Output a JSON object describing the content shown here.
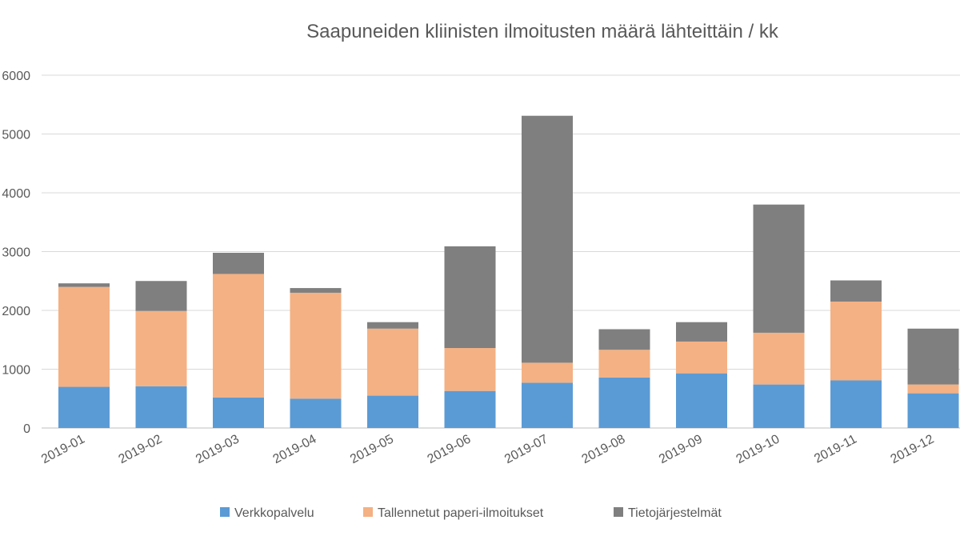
{
  "chart_data": {
    "type": "bar",
    "stacked": true,
    "title": "Saapuneiden kliinisten ilmoitusten määrä lähteittäin / kk",
    "xlabel": "",
    "ylabel": "",
    "categories": [
      "2019-01",
      "2019-02",
      "2019-03",
      "2019-04",
      "2019-05",
      "2019-06",
      "2019-07",
      "2019-08",
      "2019-09",
      "2019-10",
      "2019-11",
      "2019-12"
    ],
    "y_ticks": [
      "0",
      "1000",
      "2000",
      "3000",
      "4000",
      "5000",
      "6000"
    ],
    "y_tick_values": [
      0,
      1000,
      2000,
      3000,
      4000,
      5000,
      6000
    ],
    "ylim": [
      0,
      6000
    ],
    "grid": true,
    "legend_position": "bottom",
    "series": [
      {
        "name": "Verkkopalvelu",
        "color": "#5B9BD5",
        "values": [
          700,
          710,
          520,
          500,
          550,
          630,
          770,
          860,
          930,
          740,
          810,
          590
        ]
      },
      {
        "name": "Tallennetut paperi-ilmoitukset",
        "color": "#F4B183",
        "values": [
          1700,
          1280,
          2100,
          1800,
          1140,
          730,
          340,
          470,
          540,
          880,
          1340,
          150
        ]
      },
      {
        "name": "Tietojärjestelmät",
        "color": "#7F7F7F",
        "values": [
          60,
          510,
          360,
          80,
          110,
          1730,
          4200,
          350,
          330,
          2180,
          360,
          950
        ]
      }
    ]
  }
}
